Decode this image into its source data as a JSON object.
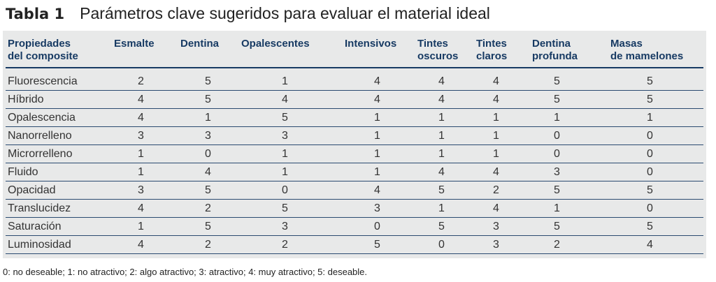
{
  "title": {
    "label": "Tabla 1",
    "text": "Parámetros clave sugeridos para evaluar el material ideal"
  },
  "table": {
    "headers": [
      [
        "Propiedades",
        "del composite"
      ],
      [
        "Esmalte",
        ""
      ],
      [
        "Dentina",
        ""
      ],
      [
        "Opalescentes",
        ""
      ],
      [
        "Intensivos",
        ""
      ],
      [
        "Tintes",
        "oscuros"
      ],
      [
        "Tintes",
        "claros"
      ],
      [
        "Dentina",
        "profunda"
      ],
      [
        "Masas",
        "de mamelones"
      ]
    ],
    "rows": [
      [
        "Fluorescencia",
        "2",
        "5",
        "1",
        "4",
        "4",
        "4",
        "5",
        "5"
      ],
      [
        "Híbrido",
        "4",
        "5",
        "4",
        "4",
        "4",
        "4",
        "5",
        "5"
      ],
      [
        "Opalescencia",
        "4",
        "1",
        "5",
        "1",
        "1",
        "1",
        "1",
        "1"
      ],
      [
        "Nanorrelleno",
        "3",
        "3",
        "3",
        "1",
        "1",
        "1",
        "0",
        "0"
      ],
      [
        "Microrrelleno",
        "1",
        "0",
        "1",
        "1",
        "1",
        "1",
        "0",
        "0"
      ],
      [
        "Fluido",
        "1",
        "4",
        "1",
        "1",
        "4",
        "4",
        "3",
        "0"
      ],
      [
        "Opacidad",
        "3",
        "5",
        "0",
        "4",
        "5",
        "2",
        "5",
        "5"
      ],
      [
        "Translucidez",
        "4",
        "2",
        "5",
        "3",
        "1",
        "4",
        "1",
        "0"
      ],
      [
        "Saturación",
        "1",
        "5",
        "3",
        "0",
        "5",
        "3",
        "5",
        "5"
      ],
      [
        "Luminosidad",
        "4",
        "2",
        "2",
        "5",
        "0",
        "3",
        "2",
        "4"
      ]
    ]
  },
  "footer": "0: no deseable; 1: no atractivo; 2: algo atractivo; 3: atractivo; 4: muy atractivo; 5: deseable.",
  "colors": {
    "header": "#173a63",
    "panel": "#e8e9e9"
  }
}
